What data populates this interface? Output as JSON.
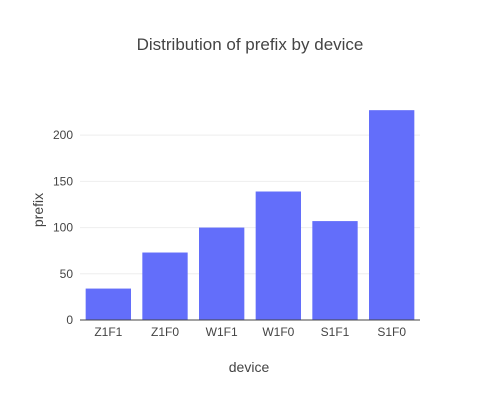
{
  "chart_data": {
    "type": "bar",
    "title": "Distribution of prefix by device",
    "xlabel": "device",
    "ylabel": "prefix",
    "categories": [
      "Z1F1",
      "Z1F0",
      "W1F1",
      "W1F0",
      "S1F1",
      "S1F0"
    ],
    "values": [
      34,
      73,
      100,
      139,
      107,
      227
    ],
    "ylim": [
      0,
      238
    ],
    "yticks": [
      0,
      50,
      100,
      150,
      200
    ],
    "grid": true,
    "bar_color": "#636efa"
  }
}
